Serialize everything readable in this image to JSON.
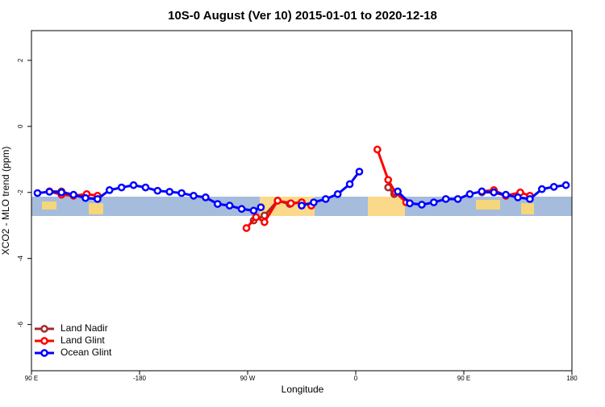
{
  "chart_data": {
    "type": "line",
    "title": "10S-0 August (Ver 10)   2015-01-01 to 2020-12-18",
    "x_label": "Longitude",
    "y_label": "XCO2 - MLO trend (ppm)",
    "xlim": [
      -270,
      180
    ],
    "xticks": [
      {
        "value": -270,
        "label": "90 E"
      },
      -180,
      {
        "value": -90,
        "label": "90 W"
      },
      0,
      {
        "value": 90,
        "label": "90 E"
      },
      180
    ],
    "ylim": [
      -7.4,
      2.9
    ],
    "yticks": [
      -6,
      -4,
      -2,
      0,
      2
    ],
    "legend": "bottom-left",
    "series": [
      {
        "name": "Land Nadir",
        "color": "#a52a2a",
        "x": [
          -255,
          -245,
          -235,
          null,
          -85,
          -76,
          -65,
          -55,
          -45,
          null,
          27,
          32,
          null,
          105,
          115,
          125
        ],
        "values": [
          -1.97,
          -1.97,
          -2.08,
          null,
          -2.85,
          -2.7,
          -2.25,
          -2.35,
          -2.3,
          null,
          -1.85,
          -2.05,
          null,
          -2.0,
          -2.0,
          -2.1
        ]
      },
      {
        "name": "Land Glint",
        "color": "#ff0000",
        "x": [
          -255,
          -245,
          -235,
          -224,
          -215,
          null,
          -91,
          -83,
          -76,
          -65,
          -54,
          -45,
          -37,
          null,
          18,
          27,
          33,
          42,
          null,
          105,
          115,
          125,
          137,
          145
        ],
        "values": [
          -1.97,
          -2.07,
          -2.1,
          -2.05,
          -2.1,
          null,
          -3.08,
          -2.75,
          -2.9,
          -2.25,
          -2.33,
          -2.3,
          -2.4,
          null,
          -0.7,
          -1.62,
          -2.0,
          -2.3,
          null,
          -1.97,
          -1.93,
          -2.1,
          -2.0,
          -2.1
        ]
      },
      {
        "name": "Ocean Glint",
        "color": "#0000ff",
        "x": [
          -265,
          -255,
          -245,
          -235,
          -225,
          -215,
          -205,
          -195,
          -185,
          -175,
          -165,
          -155,
          -145,
          -135,
          -125,
          -115,
          -105,
          -95,
          -85,
          -79,
          null,
          -45,
          -35,
          -25,
          -15,
          -5,
          3,
          null,
          35,
          45,
          55,
          65,
          75,
          85,
          95,
          105,
          115,
          125,
          135,
          145,
          155,
          165,
          175
        ],
        "values": [
          -2.02,
          -1.98,
          -2.0,
          -2.07,
          -2.17,
          -2.2,
          -1.93,
          -1.85,
          -1.78,
          -1.85,
          -1.95,
          -1.98,
          -2.02,
          -2.1,
          -2.15,
          -2.35,
          -2.4,
          -2.5,
          -2.55,
          -2.45,
          null,
          -2.4,
          -2.3,
          -2.2,
          -2.05,
          -1.75,
          -1.37,
          null,
          -1.97,
          -2.33,
          -2.37,
          -2.3,
          -2.2,
          -2.2,
          -2.05,
          -1.97,
          -2.0,
          -2.07,
          -2.15,
          -2.2,
          -1.9,
          -1.83,
          -1.78
        ]
      }
    ]
  }
}
